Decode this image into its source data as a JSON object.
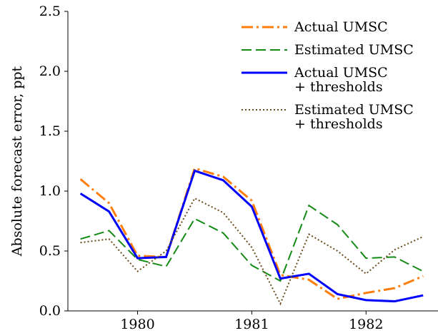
{
  "chart_data": {
    "type": "line",
    "ylabel": "Absolute forecast error, ppt",
    "x": [
      1979.5,
      1979.75,
      1980,
      1980.25,
      1980.5,
      1980.75,
      1981,
      1981.25,
      1981.5,
      1981.75,
      1982,
      1982.25,
      1982.5
    ],
    "xlim": [
      1979.39,
      1982.63
    ],
    "xticks": [
      1980,
      1981,
      1982
    ],
    "ylim": [
      0,
      2.5
    ],
    "yticks": [
      {
        "value": 0,
        "label": "0.0"
      },
      0.5,
      {
        "value": 1,
        "label": "1.0"
      },
      1.5,
      {
        "value": 2,
        "label": "2.0"
      },
      2.5
    ],
    "legend": "upper right",
    "series": [
      {
        "name": "Actual UMSC",
        "color": "#ff7f0e",
        "linestyle": "dashdot",
        "values": [
          1.1,
          0.9,
          0.46,
          0.45,
          1.19,
          1.12,
          0.92,
          0.3,
          0.26,
          0.1,
          0.15,
          0.19,
          0.29
        ]
      },
      {
        "name": "Estimated UMSC",
        "color": "#138a13",
        "linestyle": "dashed",
        "values": [
          0.6,
          0.67,
          0.43,
          0.37,
          0.77,
          0.65,
          0.38,
          0.25,
          0.88,
          0.72,
          0.44,
          0.45,
          0.33
        ]
      },
      {
        "name": "Actual UMSC\n+ thresholds",
        "color": "#0000ff",
        "linestyle": "solid",
        "values": [
          0.98,
          0.83,
          0.44,
          0.45,
          1.17,
          1.09,
          0.87,
          0.27,
          0.31,
          0.14,
          0.09,
          0.08,
          0.13
        ]
      },
      {
        "name": "Estimated UMSC\n+ thresholds",
        "color": "#6b4a1c",
        "linestyle": "dotted",
        "values": [
          0.57,
          0.6,
          0.33,
          0.5,
          0.94,
          0.82,
          0.53,
          0.06,
          0.64,
          0.5,
          0.31,
          0.51,
          0.62
        ]
      }
    ]
  }
}
